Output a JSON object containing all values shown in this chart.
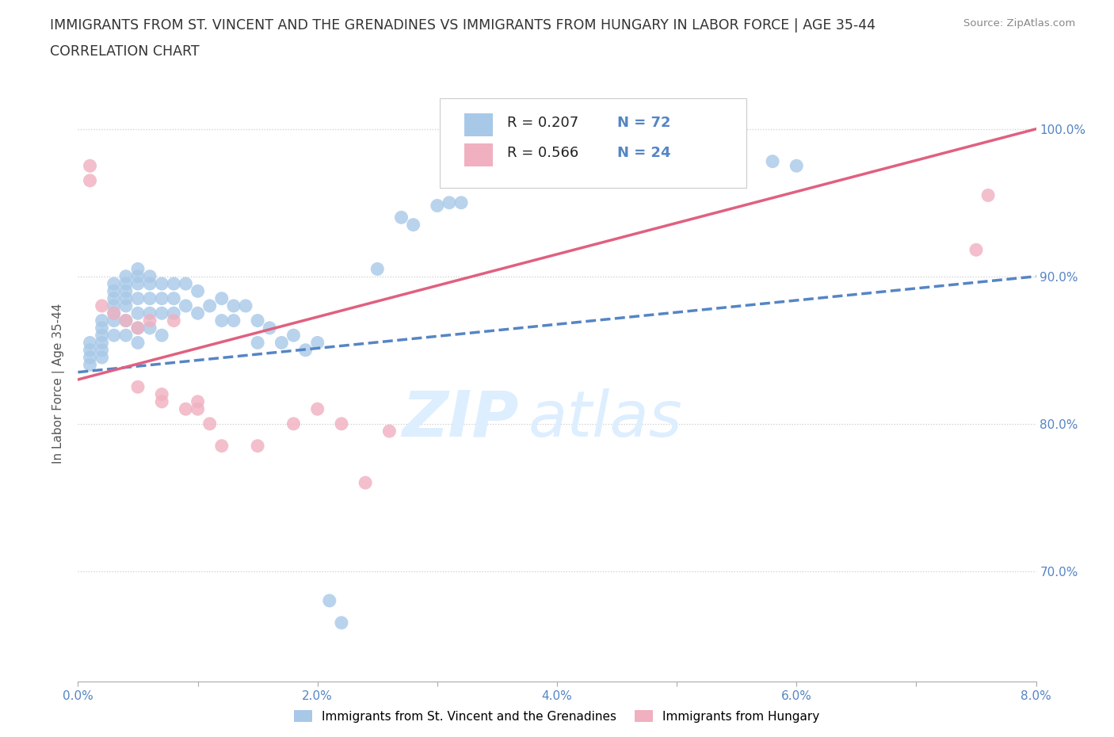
{
  "title_line1": "IMMIGRANTS FROM ST. VINCENT AND THE GRENADINES VS IMMIGRANTS FROM HUNGARY IN LABOR FORCE | AGE 35-44",
  "title_line2": "CORRELATION CHART",
  "source_text": "Source: ZipAtlas.com",
  "ylabel": "In Labor Force | Age 35-44",
  "xlim": [
    0.0,
    0.08
  ],
  "ylim": [
    0.625,
    1.03
  ],
  "xtick_labels": [
    "0.0%",
    "",
    "2.0%",
    "",
    "4.0%",
    "",
    "6.0%",
    "",
    "8.0%"
  ],
  "xtick_vals": [
    0.0,
    0.01,
    0.02,
    0.03,
    0.04,
    0.05,
    0.06,
    0.07,
    0.08
  ],
  "xtick_major_labels": [
    "0.0%",
    "2.0%",
    "4.0%",
    "6.0%",
    "8.0%"
  ],
  "xtick_major_vals": [
    0.0,
    0.02,
    0.04,
    0.06,
    0.08
  ],
  "ytick_labels": [
    "70.0%",
    "80.0%",
    "90.0%",
    "100.0%"
  ],
  "ytick_vals": [
    0.7,
    0.8,
    0.9,
    1.0
  ],
  "blue_color": "#a8c8e8",
  "pink_color": "#f0b0c0",
  "blue_line_color": "#5585c5",
  "pink_line_color": "#e06080",
  "watermark_zip": "ZIP",
  "watermark_atlas": "atlas",
  "watermark_color": "#ddeeff",
  "legend_label_blue": "Immigrants from St. Vincent and the Grenadines",
  "legend_label_pink": "Immigrants from Hungary",
  "blue_scatter_x": [
    0.001,
    0.001,
    0.001,
    0.001,
    0.002,
    0.002,
    0.002,
    0.002,
    0.002,
    0.002,
    0.003,
    0.003,
    0.003,
    0.003,
    0.003,
    0.003,
    0.003,
    0.004,
    0.004,
    0.004,
    0.004,
    0.004,
    0.004,
    0.004,
    0.005,
    0.005,
    0.005,
    0.005,
    0.005,
    0.005,
    0.005,
    0.006,
    0.006,
    0.006,
    0.006,
    0.006,
    0.007,
    0.007,
    0.007,
    0.007,
    0.008,
    0.008,
    0.008,
    0.009,
    0.009,
    0.01,
    0.01,
    0.011,
    0.012,
    0.012,
    0.013,
    0.013,
    0.014,
    0.015,
    0.015,
    0.016,
    0.017,
    0.018,
    0.019,
    0.02,
    0.021,
    0.022,
    0.025,
    0.027,
    0.028,
    0.03,
    0.031,
    0.032,
    0.05,
    0.055,
    0.058,
    0.06
  ],
  "blue_scatter_y": [
    0.855,
    0.85,
    0.845,
    0.84,
    0.87,
    0.865,
    0.86,
    0.855,
    0.85,
    0.845,
    0.895,
    0.89,
    0.885,
    0.88,
    0.875,
    0.87,
    0.86,
    0.9,
    0.895,
    0.89,
    0.885,
    0.88,
    0.87,
    0.86,
    0.905,
    0.9,
    0.895,
    0.885,
    0.875,
    0.865,
    0.855,
    0.9,
    0.895,
    0.885,
    0.875,
    0.865,
    0.895,
    0.885,
    0.875,
    0.86,
    0.895,
    0.885,
    0.875,
    0.895,
    0.88,
    0.89,
    0.875,
    0.88,
    0.885,
    0.87,
    0.88,
    0.87,
    0.88,
    0.87,
    0.855,
    0.865,
    0.855,
    0.86,
    0.85,
    0.855,
    0.68,
    0.665,
    0.905,
    0.94,
    0.935,
    0.948,
    0.95,
    0.95,
    0.968,
    0.982,
    0.978,
    0.975
  ],
  "pink_scatter_x": [
    0.001,
    0.001,
    0.002,
    0.003,
    0.004,
    0.005,
    0.005,
    0.006,
    0.007,
    0.007,
    0.008,
    0.009,
    0.01,
    0.01,
    0.011,
    0.012,
    0.015,
    0.018,
    0.02,
    0.022,
    0.024,
    0.026,
    0.075,
    0.076
  ],
  "pink_scatter_y": [
    0.975,
    0.965,
    0.88,
    0.875,
    0.87,
    0.865,
    0.825,
    0.87,
    0.82,
    0.815,
    0.87,
    0.81,
    0.815,
    0.81,
    0.8,
    0.785,
    0.785,
    0.8,
    0.81,
    0.8,
    0.76,
    0.795,
    0.918,
    0.955
  ],
  "blue_trendline": [
    0.0,
    0.835,
    0.08,
    0.9
  ],
  "pink_trendline": [
    0.0,
    0.83,
    0.08,
    1.0
  ]
}
